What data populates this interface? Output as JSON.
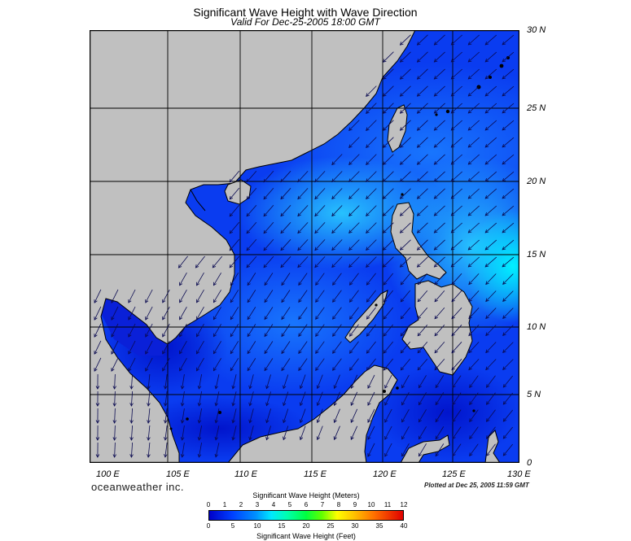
{
  "title": "Significant Wave Height with Wave Direction",
  "subtitle": "Valid For Dec-25-2005 18:00 GMT",
  "lat_labels": [
    "30 N",
    "25 N",
    "20 N",
    "15 N",
    "10 N",
    "5 N",
    "0"
  ],
  "lon_labels": [
    "100 E",
    "105 E",
    "110 E",
    "115 E",
    "120 E",
    "125 E",
    "130 E"
  ],
  "brand": "oceanweather inc.",
  "plotted": "Plotted at Dec 25, 2005 11:59 GMT",
  "colorbar": {
    "title_top": "Significant Wave Height (Meters)",
    "title_bottom": "Significant Wave Height (Feet)",
    "meters_ticks": [
      "0",
      "1",
      "2",
      "3",
      "4",
      "5",
      "6",
      "7",
      "8",
      "9",
      "10",
      "11",
      "12"
    ],
    "feet_ticks": [
      "0",
      "5",
      "10",
      "15",
      "20",
      "25",
      "30",
      "35",
      "40"
    ],
    "colors": [
      "#0000c8",
      "#0040ff",
      "#0090ff",
      "#00e8ff",
      "#00ff40",
      "#ffff00",
      "#ff7000",
      "#e00000"
    ]
  },
  "colors": {
    "land": "#c0c0c0",
    "sea_low": "#0a2ae6",
    "sea_mid": "#1a8cff",
    "sea_high": "#00d0ff",
    "coast": "#000000"
  }
}
